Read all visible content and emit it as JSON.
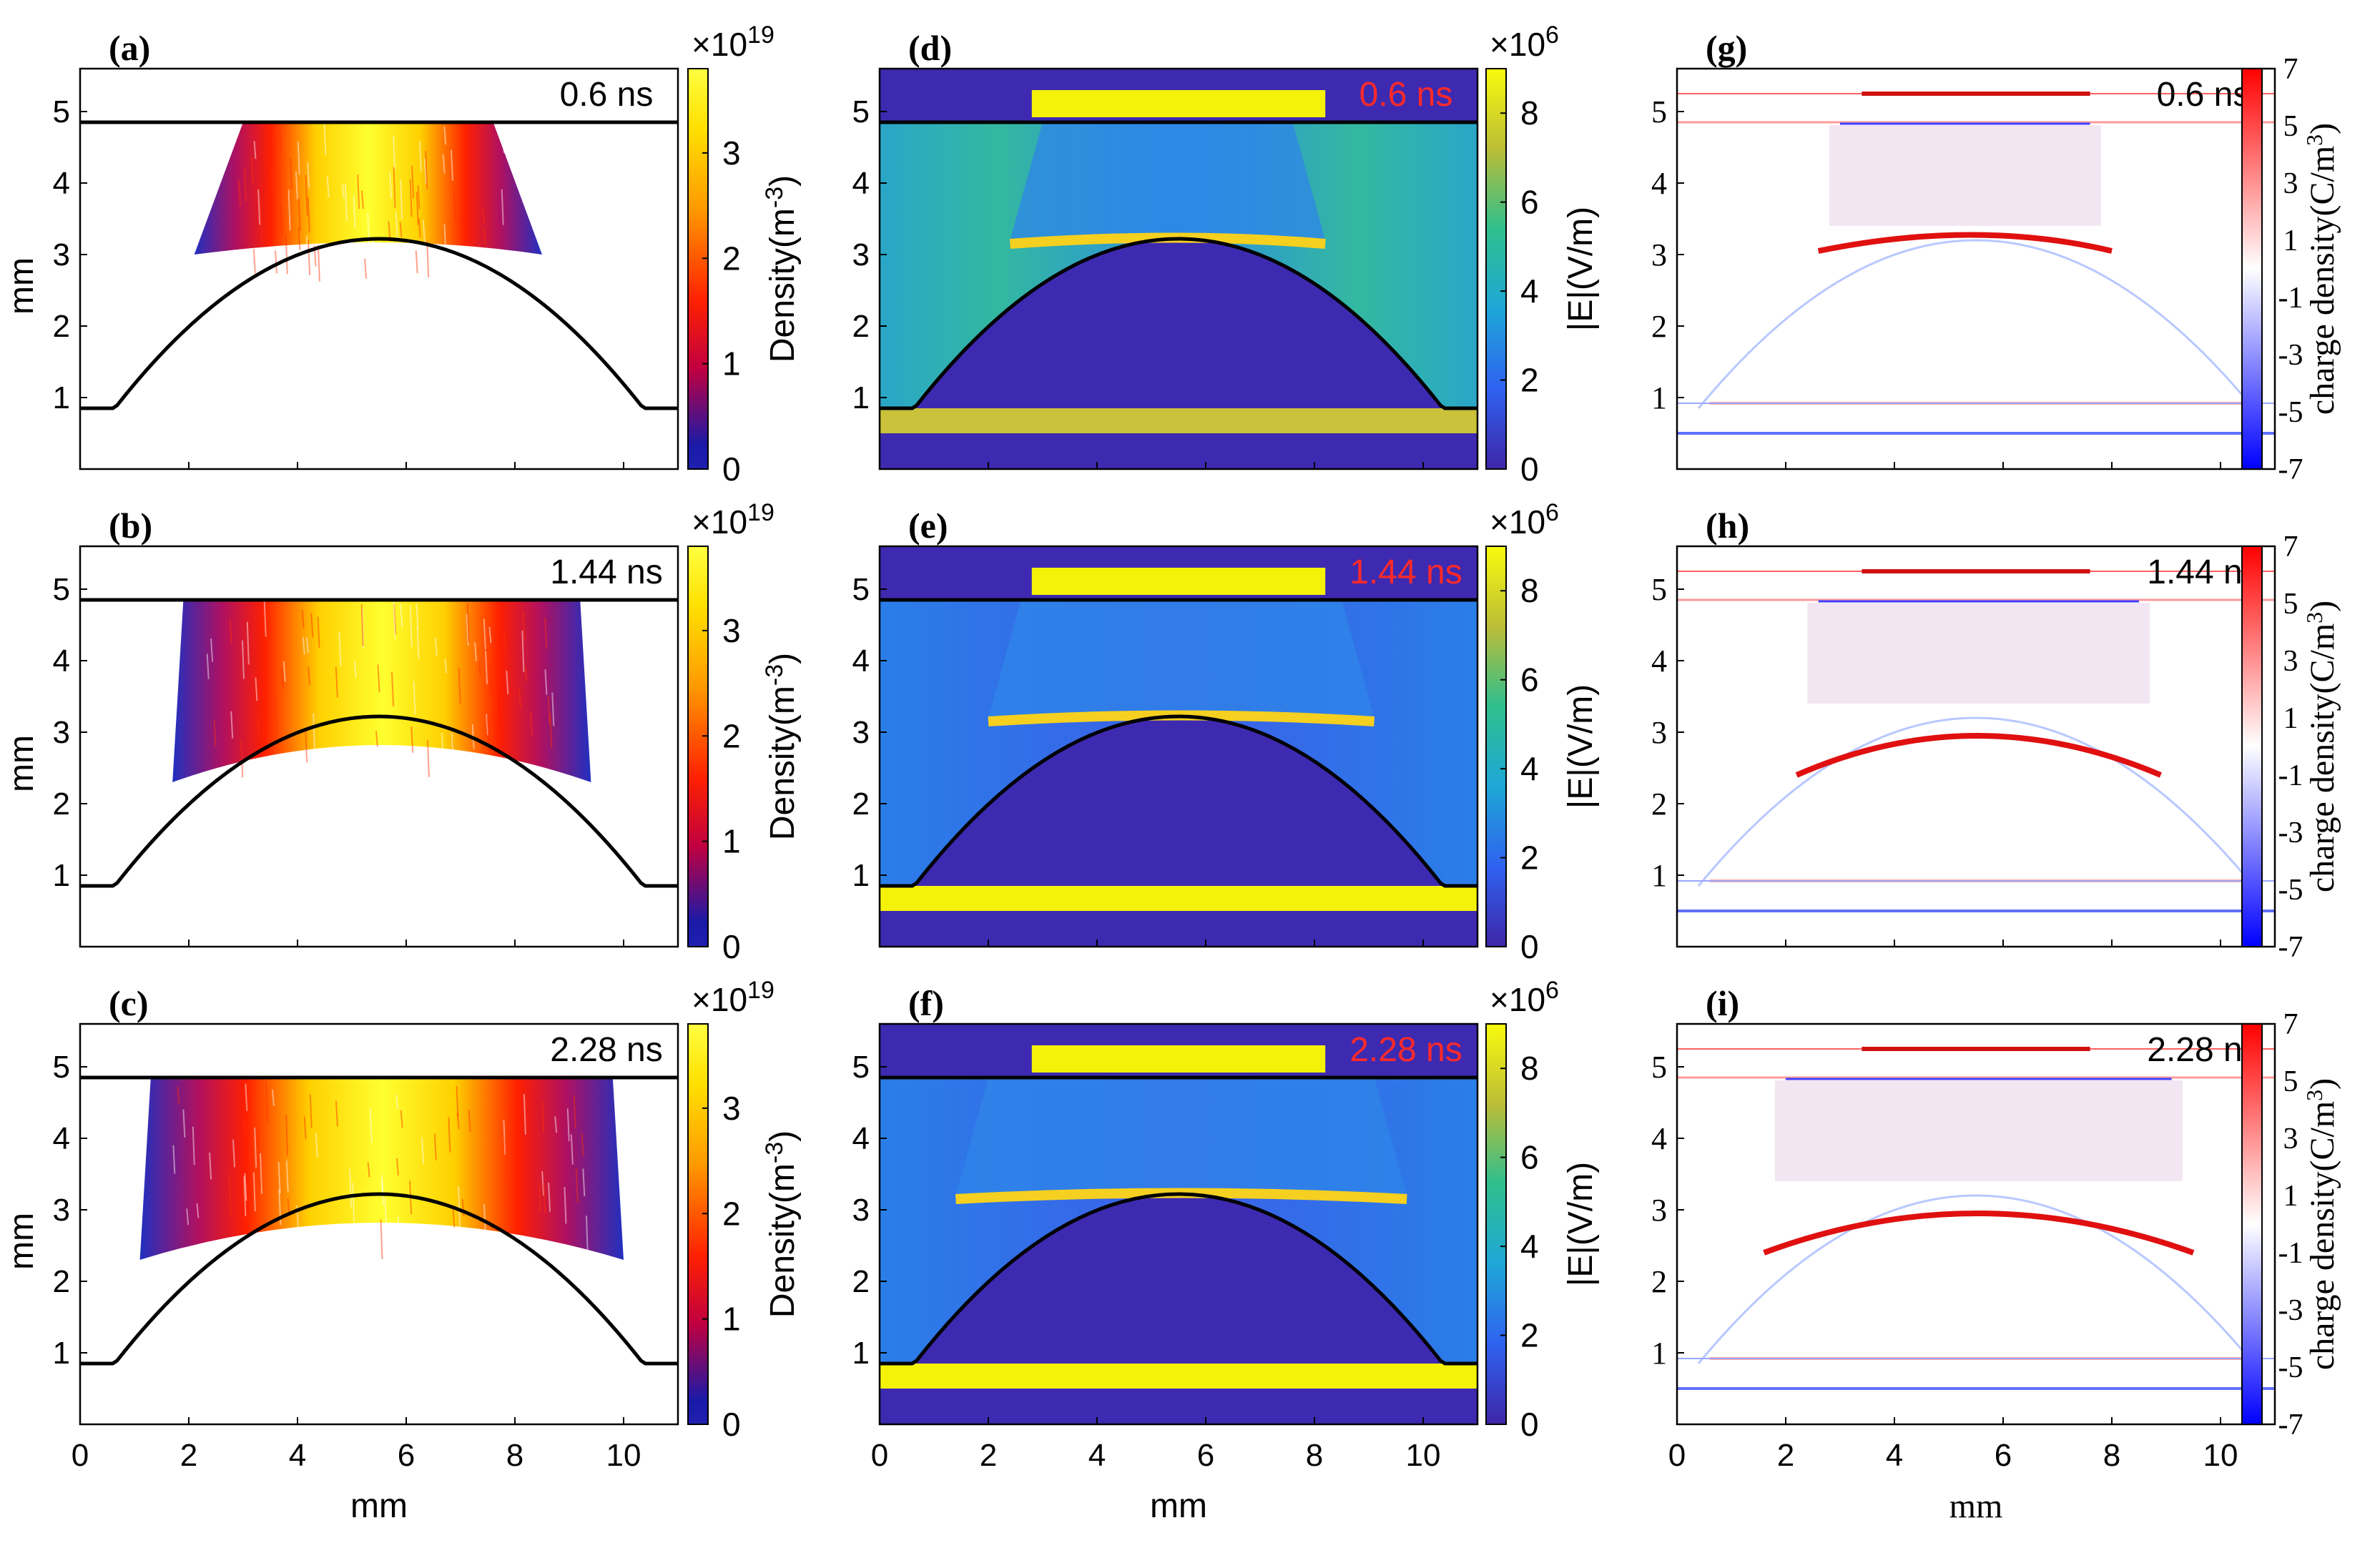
{
  "figure": {
    "x_label": "mm",
    "y_label": "mm",
    "x_ticks": [
      "0",
      "2",
      "4",
      "6",
      "8",
      "10"
    ],
    "y_ticks": [
      "1",
      "2",
      "3",
      "4",
      "5"
    ],
    "x_range_mm": [
      0,
      11
    ],
    "y_range_mm": [
      0,
      5.6
    ]
  },
  "colorbars": {
    "density": {
      "label": "Density(m",
      "label_exp": "-3",
      "label_close": ")",
      "multiplier": "×10",
      "multiplier_exp": "19",
      "ticks": [
        "0",
        "1",
        "2",
        "3"
      ]
    },
    "efield": {
      "label": "|E|(V/m)",
      "multiplier": "×10",
      "multiplier_exp": "6",
      "ticks": [
        "0",
        "2",
        "4",
        "6",
        "8"
      ]
    },
    "charge": {
      "label": "charge density(C/m",
      "label_exp": "3",
      "label_close": ")",
      "ticks": [
        "7",
        "5",
        "3",
        "1",
        "-1",
        "-3",
        "-5",
        "-7"
      ]
    }
  },
  "colors": {
    "accent_red": "#ff2a2a",
    "electrode_yellow": "#ffff00",
    "field_blue": "#3a3fd0"
  },
  "chart_data": [
    {
      "id": "a",
      "panel_label": "(a)",
      "type": "heatmap",
      "quantity": "electron density",
      "time_label": "0.6 ns",
      "time_ns": 0.6,
      "colorbar_range": [
        0,
        3.8e+19
      ],
      "plasma_extent_mm": [
        2.1,
        8.5
      ],
      "column": "density"
    },
    {
      "id": "b",
      "panel_label": "(b)",
      "type": "heatmap",
      "quantity": "electron density",
      "time_label": "1.44 ns",
      "time_ns": 1.44,
      "colorbar_range": [
        0,
        3.8e+19
      ],
      "plasma_extent_mm": [
        1.7,
        9.4
      ],
      "column": "density"
    },
    {
      "id": "c",
      "panel_label": "(c)",
      "type": "heatmap",
      "quantity": "electron density",
      "time_label": "2.28 ns",
      "time_ns": 2.28,
      "colorbar_range": [
        0,
        3.8e+19
      ],
      "plasma_extent_mm": [
        1.1,
        10.0
      ],
      "column": "density"
    },
    {
      "id": "d",
      "panel_label": "(d)",
      "type": "heatmap",
      "quantity": "electric field magnitude",
      "time_label": "0.6 ns",
      "time_ns": 0.6,
      "colorbar_range": [
        0,
        9000000.0
      ],
      "plasma_extent_mm": [
        2.1,
        8.5
      ],
      "column": "efield"
    },
    {
      "id": "e",
      "panel_label": "(e)",
      "type": "heatmap",
      "quantity": "electric field magnitude",
      "time_label": "1.44 ns",
      "time_ns": 1.44,
      "colorbar_range": [
        0,
        9000000.0
      ],
      "plasma_extent_mm": [
        1.7,
        9.4
      ],
      "column": "efield"
    },
    {
      "id": "f",
      "panel_label": "(f)",
      "type": "heatmap",
      "quantity": "electric field magnitude",
      "time_label": "2.28 ns",
      "time_ns": 2.28,
      "colorbar_range": [
        0,
        9000000.0
      ],
      "plasma_extent_mm": [
        1.1,
        10.0
      ],
      "column": "efield"
    },
    {
      "id": "g",
      "panel_label": "(g)",
      "type": "heatmap",
      "quantity": "charge density",
      "time_label": "0.6 ns",
      "time_ns": 0.6,
      "colorbar_range": [
        -7,
        7
      ],
      "plasma_extent_mm": [
        2.1,
        8.5
      ],
      "column": "charge"
    },
    {
      "id": "h",
      "panel_label": "(h)",
      "type": "heatmap",
      "quantity": "charge density",
      "time_label": "1.44 ns",
      "time_ns": 1.44,
      "colorbar_range": [
        -7,
        7
      ],
      "plasma_extent_mm": [
        1.7,
        9.4
      ],
      "column": "charge"
    },
    {
      "id": "i",
      "panel_label": "(i)",
      "type": "heatmap",
      "quantity": "charge density",
      "time_label": "2.28 ns",
      "time_ns": 2.28,
      "colorbar_range": [
        -7,
        7
      ],
      "plasma_extent_mm": [
        1.1,
        10.0
      ],
      "column": "charge"
    }
  ]
}
